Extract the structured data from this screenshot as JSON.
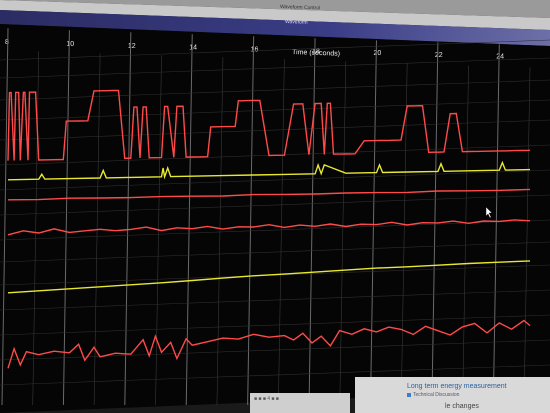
{
  "window": {
    "top_title": "Waveform Control",
    "waveform_label": "Waveform"
  },
  "chart_data": {
    "type": "line",
    "xlabel": "Time (seconds)",
    "x_ticks": [
      "8",
      "10",
      "12",
      "14",
      "16",
      "18",
      "20",
      "22",
      "24"
    ],
    "xlim": [
      8,
      25
    ],
    "grid": true,
    "background": "#000000",
    "series": [
      {
        "color": "#ff4a4a",
        "x": [
          8.0,
          8.05,
          8.1,
          8.2,
          8.25,
          8.35,
          8.4,
          8.5,
          8.55,
          8.65,
          8.7,
          8.9,
          9.0,
          9.3,
          9.8,
          9.9,
          10.0,
          10.3,
          10.6,
          10.8,
          11.2,
          11.4,
          11.6,
          11.8,
          12.0,
          12.1,
          12.2,
          12.3,
          12.4,
          12.5,
          12.6,
          12.8,
          13.0,
          13.1,
          13.2,
          13.4,
          13.5,
          13.7,
          13.8,
          13.9,
          14.0,
          14.2,
          14.5,
          14.6,
          14.9,
          15.1,
          15.4,
          15.5,
          15.6,
          15.8,
          16.0,
          16.2,
          16.5,
          16.7,
          17.0,
          17.3,
          17.6,
          17.8,
          18.0,
          18.2,
          18.3,
          18.4,
          18.5,
          18.6,
          18.7,
          18.8,
          19.0,
          19.3,
          19.6,
          19.8,
          20.0,
          20.1,
          20.2,
          20.4,
          20.6,
          20.8,
          21.0,
          21.2,
          21.3,
          21.5,
          21.7,
          21.9,
          22.0,
          22.2,
          22.4,
          22.6,
          22.8,
          23.0,
          23.2,
          23.3,
          23.4,
          23.6,
          23.8,
          24.0,
          24.1,
          24.3,
          24.5,
          24.7,
          24.9,
          25.0
        ],
        "y": [
          5,
          85,
          85,
          5,
          85,
          85,
          5,
          85,
          85,
          5,
          85,
          85,
          5,
          5,
          5,
          50,
          50,
          50,
          50,
          85,
          85,
          85,
          85,
          5,
          5,
          65,
          65,
          5,
          65,
          65,
          5,
          5,
          5,
          65,
          65,
          5,
          65,
          65,
          5,
          5,
          5,
          5,
          5,
          40,
          40,
          40,
          40,
          70,
          70,
          70,
          70,
          70,
          5,
          5,
          5,
          65,
          65,
          5,
          65,
          65,
          5,
          65,
          65,
          5,
          5,
          5,
          5,
          5,
          20,
          20,
          20,
          20,
          20,
          20,
          20,
          20,
          60,
          60,
          60,
          60,
          5,
          5,
          5,
          5,
          50,
          50,
          5,
          5,
          5,
          5,
          5,
          5,
          5,
          5,
          5,
          5,
          5,
          5,
          5,
          5
        ],
        "min": 0,
        "max": 100
      },
      {
        "color": "#e8e830",
        "x": [
          8,
          9,
          9.1,
          9.2,
          10,
          11,
          11.1,
          11.2,
          12,
          13,
          13.05,
          13.1,
          13.2,
          13.3,
          14,
          15,
          16,
          17,
          18,
          18.1,
          18.2,
          18.3,
          19,
          20,
          20.1,
          20.2,
          21,
          22,
          22.1,
          22.2,
          23,
          24,
          24.1,
          24.2,
          25
        ],
        "y": [
          40,
          40,
          60,
          40,
          40,
          40,
          70,
          40,
          40,
          40,
          75,
          40,
          75,
          40,
          40,
          40,
          40,
          40,
          40,
          75,
          40,
          75,
          40,
          40,
          70,
          40,
          40,
          40,
          70,
          40,
          40,
          40,
          70,
          40,
          40
        ],
        "min": 0,
        "max": 100
      },
      {
        "color": "#ff4a4a",
        "x": [
          8,
          9,
          10,
          11,
          12,
          13,
          14,
          15,
          16,
          17,
          18,
          19,
          20,
          21,
          22,
          23,
          24,
          25
        ],
        "y": [
          50,
          48,
          52,
          50,
          49,
          51,
          50,
          48,
          52,
          50,
          49,
          51,
          50,
          48,
          52,
          50,
          49,
          51
        ],
        "min": 0,
        "max": 100
      },
      {
        "color": "#ff4a4a",
        "x": [
          8,
          8.5,
          9,
          9.5,
          10,
          10.5,
          11,
          11.5,
          12,
          12.5,
          13,
          13.5,
          14,
          14.5,
          15,
          15.5,
          16,
          16.5,
          17,
          17.5,
          18,
          18.5,
          19,
          19.5,
          20,
          20.5,
          21,
          21.5,
          22,
          22.5,
          23,
          23.5,
          24,
          24.5,
          25
        ],
        "y": [
          40,
          55,
          45,
          60,
          45,
          50,
          55,
          48,
          52,
          60,
          45,
          55,
          50,
          58,
          46,
          54,
          52,
          60,
          48,
          56,
          50,
          58,
          47,
          55,
          52,
          60,
          48,
          56,
          54,
          60,
          50,
          58,
          55,
          60,
          55
        ],
        "min": 0,
        "max": 100
      },
      {
        "color": "#e8e830",
        "x": [
          8,
          9,
          10,
          11,
          12,
          13,
          14,
          15,
          16,
          17,
          18,
          19,
          20,
          21,
          22,
          23,
          24,
          25
        ],
        "y": [
          20,
          24,
          28,
          32,
          36,
          40,
          45,
          50,
          55,
          58,
          62,
          66,
          70,
          72,
          75,
          78,
          80,
          82
        ],
        "min": 0,
        "max": 100
      },
      {
        "color": "#ff4a4a",
        "x": [
          8,
          8.2,
          8.4,
          8.6,
          9,
          9.5,
          10,
          10.3,
          10.5,
          10.8,
          11,
          11.5,
          12,
          12.4,
          12.6,
          12.8,
          13,
          13.3,
          13.5,
          13.8,
          14,
          14.5,
          15,
          15.5,
          16,
          16.5,
          17,
          17.3,
          17.6,
          17.9,
          18.2,
          18.5,
          18.8,
          19.2,
          19.6,
          20,
          20.4,
          20.8,
          21.2,
          21.6,
          22,
          22.4,
          22.8,
          23.2,
          23.6,
          24,
          24.4,
          24.8,
          25
        ],
        "y": [
          10,
          40,
          15,
          35,
          30,
          35,
          32,
          45,
          20,
          40,
          25,
          30,
          28,
          50,
          25,
          55,
          30,
          45,
          20,
          50,
          40,
          45,
          50,
          48,
          55,
          50,
          52,
          45,
          55,
          40,
          50,
          35,
          58,
          52,
          60,
          55,
          62,
          58,
          50,
          62,
          55,
          48,
          60,
          65,
          50,
          65,
          55,
          68,
          60
        ],
        "min": 0,
        "max": 100
      }
    ]
  },
  "bottom_panel": {
    "title": "Long term energy measurement",
    "subtitle": "Technical Discussion",
    "tail": "le changes"
  },
  "taskbar": {
    "label": "■ ■ ■ 4 ■ ■"
  }
}
